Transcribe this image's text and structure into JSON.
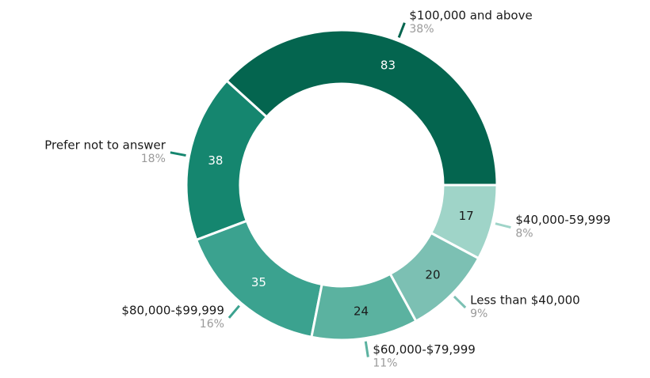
{
  "chart_data": {
    "type": "donut",
    "categories": [
      "$100,000 and above",
      "Prefer not to answer",
      "$80,000-$99,999",
      "$60,000-$79,999",
      "Less than $40,000",
      "$40,000-59,999"
    ],
    "values": [
      83,
      38,
      35,
      24,
      20,
      17
    ],
    "percent_labels": [
      "38%",
      "18%",
      "16%",
      "11%",
      "9%",
      "8%"
    ],
    "colors": [
      "#04654f",
      "#15866f",
      "#3ba28f",
      "#5bb2a0",
      "#7cc0b3",
      "#9fd4c8"
    ],
    "value_label_colors": [
      "#ffffff",
      "#ffffff",
      "#ffffff",
      "#1a1a1a",
      "#1a1a1a",
      "#1a1a1a"
    ]
  }
}
